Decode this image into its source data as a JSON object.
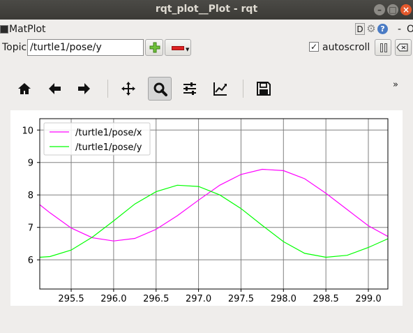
{
  "window": {
    "title": "rqt_plot__Plot - rqt",
    "minimize_icon": "–",
    "maximize_icon": "□",
    "close_icon": "×"
  },
  "plugin": {
    "title": "MatPlot",
    "d_label": "D",
    "help_label": "?",
    "dash_label": "-",
    "o_label": "O"
  },
  "topic": {
    "label": "Topic",
    "value": "/turtle1/pose/y",
    "autoscroll_label": "autoscroll",
    "autoscroll_checked": true,
    "checkmark": "✓"
  },
  "toolbar": {
    "buttons": [
      "home-icon",
      "back-icon",
      "forward-icon",
      "pan-icon",
      "zoom-icon",
      "subplots-icon",
      "edit-axis-icon",
      "save-icon"
    ],
    "active": "zoom-icon",
    "overflow_label": "»"
  },
  "chart_data": {
    "type": "line",
    "xlim": [
      295.13,
      299.23
    ],
    "ylim": [
      5.1,
      10.35
    ],
    "xticks": [
      295.5,
      296.0,
      296.5,
      297.0,
      297.5,
      298.0,
      298.5,
      299.0
    ],
    "xtick_labels": [
      "295.5",
      "296.0",
      "296.5",
      "297.0",
      "297.5",
      "298.0",
      "298.5",
      "299.0"
    ],
    "yticks": [
      6,
      7,
      8,
      9,
      10
    ],
    "ytick_labels": [
      "6",
      "7",
      "8",
      "9",
      "10"
    ],
    "grid": true,
    "legend_position": "top-left",
    "series": [
      {
        "name": "/turtle1/pose/x",
        "color": "#ff00ff",
        "x": [
          295.13,
          295.25,
          295.5,
          295.75,
          296.0,
          296.25,
          296.5,
          296.75,
          297.0,
          297.25,
          297.5,
          297.75,
          298.0,
          298.25,
          298.5,
          298.75,
          299.0,
          299.23
        ],
        "y": [
          7.7,
          7.45,
          6.98,
          6.68,
          6.58,
          6.66,
          6.94,
          7.36,
          7.84,
          8.3,
          8.63,
          8.79,
          8.75,
          8.5,
          8.05,
          7.55,
          7.05,
          6.72
        ]
      },
      {
        "name": "/turtle1/pose/y",
        "color": "#00ff00",
        "x": [
          295.13,
          295.25,
          295.5,
          295.75,
          296.0,
          296.25,
          296.5,
          296.75,
          297.0,
          297.25,
          297.5,
          297.75,
          298.0,
          298.25,
          298.5,
          298.75,
          299.0,
          299.23
        ],
        "y": [
          6.08,
          6.1,
          6.3,
          6.7,
          7.2,
          7.72,
          8.1,
          8.3,
          8.26,
          8.0,
          7.58,
          7.06,
          6.56,
          6.2,
          6.08,
          6.14,
          6.38,
          6.65
        ]
      }
    ]
  }
}
